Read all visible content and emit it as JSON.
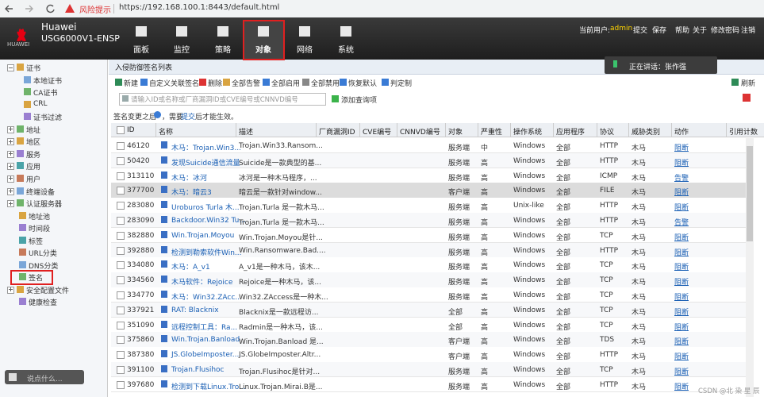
{
  "browser": {
    "warning": "风险提示",
    "url": "https://192.168.100.1:8443/default.html"
  },
  "header": {
    "logo": "HUAWEI",
    "brand": "Huawei",
    "model": "USG6000V1-ENSP",
    "nav": [
      {
        "label": "面板"
      },
      {
        "label": "监控"
      },
      {
        "label": "策略"
      },
      {
        "label": "对象",
        "selected": true
      },
      {
        "label": "网络"
      },
      {
        "label": "系统"
      }
    ],
    "user_label": "当前用户:",
    "user": "admin",
    "links": [
      "提交",
      "保存",
      "帮助",
      "关于",
      "修改密码",
      "注销"
    ]
  },
  "sidebar": {
    "items": [
      {
        "label": "证书",
        "children": [
          "本地证书",
          "CA证书",
          "CRL",
          "证书过滤"
        ]
      },
      {
        "label": "地址",
        "expandable": true
      },
      {
        "label": "地区",
        "expandable": true
      },
      {
        "label": "服务",
        "expandable": true
      },
      {
        "label": "应用",
        "expandable": true
      },
      {
        "label": "用户",
        "expandable": true
      },
      {
        "label": "终端设备",
        "expandable": true
      },
      {
        "label": "认证服务器",
        "expandable": true
      },
      {
        "label": "地址池"
      },
      {
        "label": "时间段"
      },
      {
        "label": "标签"
      },
      {
        "label": "URL分类"
      },
      {
        "label": "DNS分类"
      },
      {
        "label": "签名",
        "selected": true
      },
      {
        "label": "安全配置文件",
        "expandable": true
      },
      {
        "label": "健康检查"
      }
    ],
    "chat_placeholder": "说点什么..."
  },
  "speaking": "正在讲话：张作强",
  "panel": {
    "title": "入侵防御签名列表",
    "toolbar": [
      "新建",
      "自定义关联签名",
      "删除",
      "全部告警",
      "全部启用",
      "全部禁用",
      "恢复默认",
      "判定制"
    ],
    "refresh": "刷新",
    "search_placeholder": "请输入ID或名称或厂商漏洞ID或CVE编号或CNNVD编号",
    "add_query": "添加查询项",
    "notice": {
      "before": "签名变更之后",
      "middle": "，需要",
      "link": "提交",
      "after": "后才能生效。"
    }
  },
  "table": {
    "columns": [
      "ID",
      "名称",
      "描述",
      "厂商漏洞ID",
      "CVE编号",
      "CNNVD编号",
      "对象",
      "严重性",
      "操作系统",
      "应用程序",
      "协议",
      "威胁类别",
      "动作",
      "引用计数"
    ],
    "rows": [
      {
        "id": "46120",
        "name": "木马：Trojan.Win3...",
        "desc": "Trojan.Win33.Ransom...",
        "object": "服务端",
        "severity": "中",
        "os": "Windows",
        "app": "全部",
        "protocol": "HTTP",
        "category": "木马",
        "action": "阻断"
      },
      {
        "id": "50420",
        "name": "发现Suicide通信流量",
        "desc": "Suicide是一款典型的基...",
        "object": "服务端",
        "severity": "高",
        "os": "Windows",
        "app": "全部",
        "protocol": "HTTP",
        "category": "木马",
        "action": "阻断"
      },
      {
        "id": "313110",
        "name": "木马：冰河",
        "desc": "冰河是一种木马程序，...",
        "object": "服务端",
        "severity": "高",
        "os": "Windows",
        "app": "全部",
        "protocol": "ICMP",
        "category": "木马",
        "action": "告警"
      },
      {
        "id": "377700",
        "name": "木马：暗云3",
        "desc": "暗云是一款针对window...",
        "object": "客户端",
        "severity": "高",
        "os": "Windows",
        "app": "全部",
        "protocol": "FILE",
        "category": "木马",
        "action": "阻断",
        "selected": true
      },
      {
        "id": "283080",
        "name": "Uroburos Turla 木...",
        "desc": "Trojan.Turla 是一款木马...",
        "object": "服务端",
        "severity": "高",
        "os": "Unix-like",
        "app": "全部",
        "protocol": "HTTP",
        "category": "木马",
        "action": "阻断"
      },
      {
        "id": "283090",
        "name": "Backdoor.Win32 Tu...",
        "desc": "Trojan.Turla 是一款木马...",
        "object": "服务端",
        "severity": "高",
        "os": "Windows",
        "app": "全部",
        "protocol": "HTTP",
        "category": "木马",
        "action": "告警"
      },
      {
        "id": "382880",
        "name": "Win.Trojan.Moyou",
        "desc": "Win.Trojan.Moyou是针...",
        "object": "服务端",
        "severity": "高",
        "os": "Windows",
        "app": "全部",
        "protocol": "TCP",
        "category": "木马",
        "action": "阻断"
      },
      {
        "id": "392880",
        "name": "检测到勒索软件Win...",
        "desc": "Win.Ransomware.Bad....",
        "object": "服务端",
        "severity": "高",
        "os": "Windows",
        "app": "全部",
        "protocol": "HTTP",
        "category": "木马",
        "action": "阻断"
      },
      {
        "id": "334080",
        "name": "木马：A_v1",
        "desc": "A_v1是一种木马，该木...",
        "object": "服务端",
        "severity": "高",
        "os": "Windows",
        "app": "全部",
        "protocol": "TCP",
        "category": "木马",
        "action": "阻断"
      },
      {
        "id": "334560",
        "name": "木马软件：Rejoice",
        "desc": "Rejoice是一种木马，该...",
        "object": "服务端",
        "severity": "高",
        "os": "Windows",
        "app": "全部",
        "protocol": "TCP",
        "category": "木马",
        "action": "阻断"
      },
      {
        "id": "334770",
        "name": "木马：Win32.ZAcc...",
        "desc": "Win32.ZAccess是一种木...",
        "object": "服务端",
        "severity": "高",
        "os": "Windows",
        "app": "全部",
        "protocol": "TCP",
        "category": "木马",
        "action": "阻断"
      },
      {
        "id": "337921",
        "name": "RAT: Blacknix",
        "desc": "Blacknix是一款远程访...",
        "object": "全部",
        "severity": "高",
        "os": "Windows",
        "app": "全部",
        "protocol": "TCP",
        "category": "木马",
        "action": "阻断"
      },
      {
        "id": "351090",
        "name": "远程控制工具：Ra...",
        "desc": "Radmin是一种木马，该...",
        "object": "全部",
        "severity": "高",
        "os": "Windows",
        "app": "全部",
        "protocol": "TCP",
        "category": "木马",
        "action": "阻断"
      },
      {
        "id": "375860",
        "name": "Win.Trojan.Banload",
        "desc": "Win.Trojan.Banload 是...",
        "object": "客户端",
        "severity": "高",
        "os": "Windows",
        "app": "全部",
        "protocol": "TDS",
        "category": "木马",
        "action": "阻断"
      },
      {
        "id": "387380",
        "name": "JS.GlobeImposter....",
        "desc": "JS.GlobeImposter.Altr...",
        "object": "客户端",
        "severity": "高",
        "os": "Windows",
        "app": "全部",
        "protocol": "HTTP",
        "category": "木马",
        "action": "阻断"
      },
      {
        "id": "391100",
        "name": "Trojan.Flusihoc",
        "desc": "Trojan.Flusihoc是针对...",
        "object": "服务端",
        "severity": "高",
        "os": "Windows",
        "app": "全部",
        "protocol": "TCP",
        "category": "木马",
        "action": "阻断"
      },
      {
        "id": "397680",
        "name": "检测到下载Linux.Tro...",
        "desc": "Linux.Trojan.Mirai.B是...",
        "object": "服务端",
        "severity": "高",
        "os": "Windows",
        "app": "全部",
        "protocol": "HTTP",
        "category": "木马",
        "action": "阻断"
      }
    ]
  },
  "watermark": "CSDN @北 染 星 辰"
}
